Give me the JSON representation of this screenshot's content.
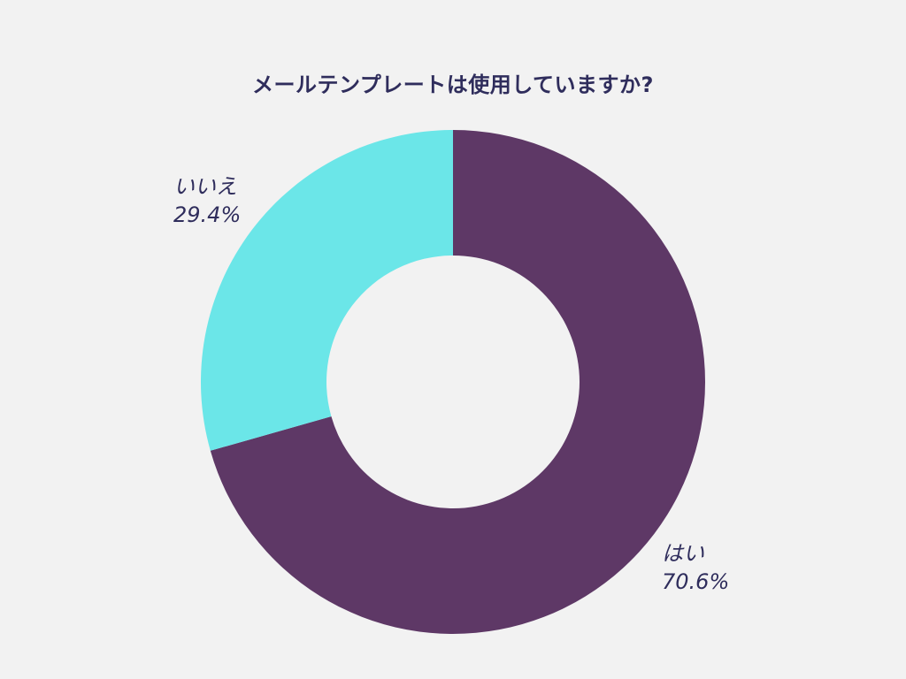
{
  "chart_data": {
    "type": "pie",
    "title": "メールテンプレートは使用していますか?",
    "donut": true,
    "slices": [
      {
        "label": "はい",
        "value": 70.6,
        "display": "70.6%",
        "color": "#5e3866"
      },
      {
        "label": "いいえ",
        "value": 29.4,
        "display": "29.4%",
        "color": "#6be6e8"
      }
    ],
    "legend": "none"
  }
}
